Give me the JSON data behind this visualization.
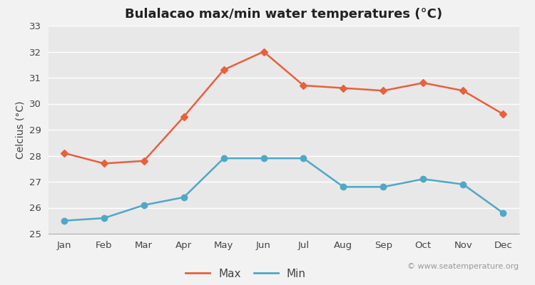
{
  "title": "Bulalacao max/min water temperatures (°C)",
  "ylabel": "Celcius (°C)",
  "watermark": "© www.seatemperature.org",
  "months": [
    "Jan",
    "Feb",
    "Mar",
    "Apr",
    "May",
    "Jun",
    "Jul",
    "Aug",
    "Sep",
    "Oct",
    "Nov",
    "Dec"
  ],
  "max_temps": [
    28.1,
    27.7,
    27.8,
    29.5,
    31.3,
    32.0,
    30.7,
    30.6,
    30.5,
    30.8,
    30.5,
    29.6
  ],
  "min_temps": [
    25.5,
    25.6,
    26.1,
    26.4,
    27.9,
    27.9,
    27.9,
    26.8,
    26.8,
    27.1,
    26.9,
    25.8
  ],
  "max_color": "#e8603c",
  "min_color": "#4fa8c5",
  "background_color": "#f2f2f2",
  "plot_bg_color": "#e8e8e8",
  "grid_color": "#ffffff",
  "ylim": [
    25,
    33
  ],
  "yticks": [
    25,
    26,
    27,
    28,
    29,
    30,
    31,
    32,
    33
  ],
  "legend_labels": [
    "Max",
    "Min"
  ],
  "title_fontsize": 13,
  "label_fontsize": 10,
  "tick_fontsize": 9.5,
  "watermark_fontsize": 8,
  "line_width": 1.8,
  "marker_style_max": "D",
  "marker_style_min": "o",
  "marker_size_max": 5,
  "marker_size_min": 6
}
